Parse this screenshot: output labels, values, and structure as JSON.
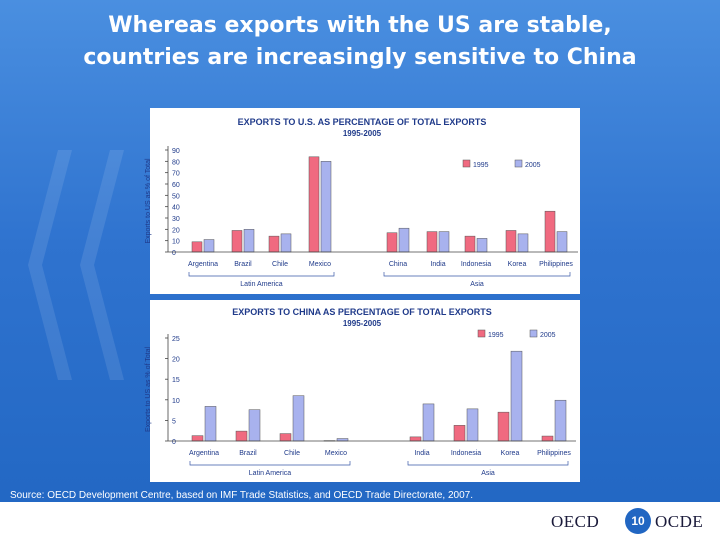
{
  "slide": {
    "title_line1": "Whereas exports with the US are stable,",
    "title_line2": "countries are increasingly sensitive to China",
    "source": "Source: OECD Development Centre, based on IMF Trade Statistics, and OECD Trade Directorate,  2007."
  },
  "footer": {
    "logo_left": "OECD",
    "page_number": "10",
    "logo_right": "OCDE"
  },
  "colors": {
    "bar_1995": "#f06a80",
    "bar_2005": "#a8b2ee"
  },
  "chart_data": [
    {
      "type": "bar",
      "title": "EXPORTS TO  U.S. AS PERCENTAGE OF TOTAL EXPORTS",
      "subtitle": "1995-2005",
      "ylabel": "Exports to US as % of Total",
      "ylim": [
        0,
        90
      ],
      "yticks": [
        0,
        10,
        20,
        30,
        40,
        50,
        60,
        70,
        80,
        90
      ],
      "categories": [
        "Argentina",
        "Brazil",
        "Chile",
        "Mexico",
        "China",
        "India",
        "Indonesia",
        "Korea",
        "Philippines"
      ],
      "groups": [
        {
          "label": "Latin America",
          "count": 4
        },
        {
          "label": "Asia",
          "count": 5
        }
      ],
      "legend_position": "top-right",
      "series": [
        {
          "name": "1995",
          "values": [
            9,
            19,
            14,
            84,
            17,
            18,
            14,
            19,
            36
          ]
        },
        {
          "name": "2005",
          "values": [
            11,
            20,
            16,
            80,
            21,
            18,
            12,
            16,
            18
          ]
        }
      ]
    },
    {
      "type": "bar",
      "title": "EXPORTS TO CHINA AS PERCENTAGE OF TOTAL EXPORTS",
      "subtitle": "1995-2005",
      "ylabel": "Exports to US as % of Total",
      "ylim": [
        0,
        25
      ],
      "yticks": [
        0,
        5,
        10,
        15,
        20,
        25
      ],
      "categories": [
        "Argentina",
        "Brazil",
        "Chile",
        "Mexico",
        "India",
        "Indonesia",
        "Korea",
        "Philippines"
      ],
      "groups": [
        {
          "label": "Latin America",
          "count": 4
        },
        {
          "label": "Asia",
          "count": 4
        }
      ],
      "legend_position": "top-right",
      "series": [
        {
          "name": "1995",
          "values": [
            1.3,
            2.4,
            1.8,
            0.1,
            1.0,
            3.8,
            7.0,
            1.2
          ]
        },
        {
          "name": "2005",
          "values": [
            8.4,
            7.6,
            11.0,
            0.6,
            9.0,
            7.8,
            21.8,
            9.9
          ]
        }
      ]
    }
  ]
}
